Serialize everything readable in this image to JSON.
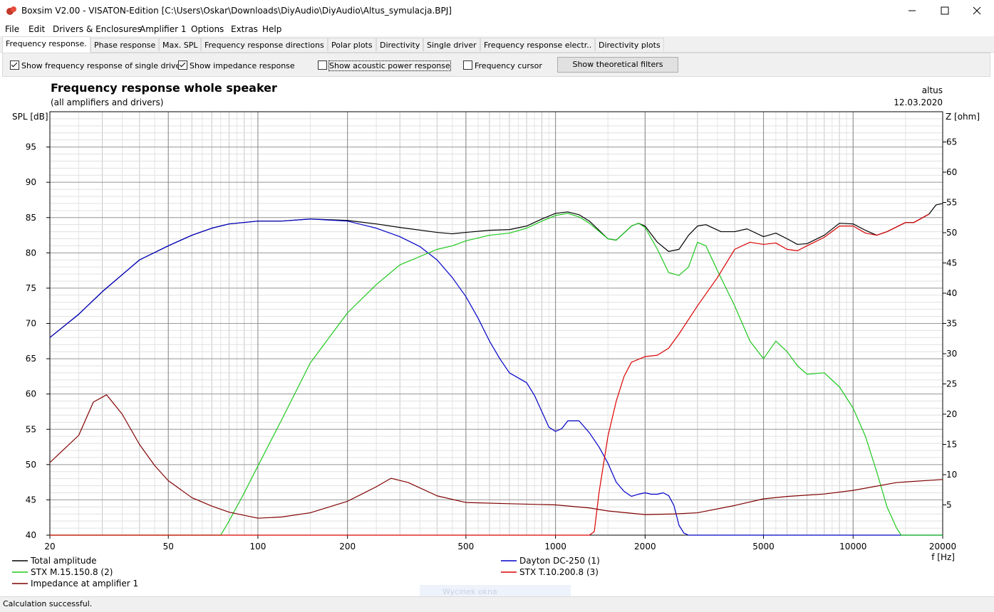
{
  "window": {
    "title": "Boxsim V2.00 - VISATON-Edition [C:\\Users\\Oskar\\Downloads\\DiyAudio\\DiyAudio\\Altus_symulacja.BPJ]",
    "menu": [
      "File",
      "Edit",
      "Drivers & Enclosures",
      "Amplifier 1",
      "Options",
      "Extras",
      "Help"
    ],
    "tabs": [
      "Frequency response.",
      "Phase response",
      "Max. SPL",
      "Frequency response directions",
      "Polar plots",
      "Directivity",
      "Single driver",
      "Frequency response electr..",
      "Directivity plots"
    ],
    "options": [
      {
        "label": "Show frequency response of single driver",
        "checked": true
      },
      {
        "label": "Show impedance response",
        "checked": true
      },
      {
        "label": "Show acoustic power response",
        "checked": false
      },
      {
        "label": "Frequency cursor",
        "checked": false
      }
    ],
    "button": "Show theoretical filters",
    "status": "Calculation successful.",
    "overlay": "Wycinek okna"
  },
  "chart_data": {
    "type": "line",
    "title": "Frequency response whole speaker",
    "subtitle": "(all amplifiers and drivers)",
    "project": "altus",
    "date": "12.03.2020",
    "ylabel": "SPL [dB]",
    "y2label": "Z [ohm]",
    "xlabel": "f [Hz]",
    "xscale": "log",
    "grid": true,
    "xlim": [
      20,
      20000
    ],
    "xticks": [
      20,
      50,
      100,
      200,
      500,
      1000,
      2000,
      5000,
      10000,
      20000
    ],
    "ylim": [
      40,
      100
    ],
    "yticks": [
      40,
      45,
      50,
      55,
      60,
      65,
      70,
      75,
      80,
      85,
      90,
      95
    ],
    "y2lim": [
      0,
      70
    ],
    "y2ticks": [
      5,
      10,
      15,
      20,
      25,
      30,
      35,
      40,
      45,
      50,
      55,
      60,
      65
    ],
    "series": [
      {
        "name": "Total amplitude",
        "color": "#000000",
        "x": [
          20,
          25,
          30,
          40,
          50,
          60,
          70,
          80,
          100,
          120,
          150,
          200,
          250,
          300,
          400,
          450,
          500,
          600,
          700,
          800,
          900,
          1000,
          1100,
          1200,
          1300,
          1500,
          1600,
          1800,
          1900,
          2000,
          2200,
          2400,
          2600,
          2800,
          3000,
          3200,
          3600,
          4000,
          4400,
          5000,
          5500,
          6000,
          6500,
          7000,
          8000,
          9000,
          10000,
          11000,
          12000,
          13000,
          15000,
          16000,
          18000,
          19000,
          20000
        ],
        "values": [
          68,
          71.3,
          74.5,
          79,
          81,
          82.5,
          83.5,
          84.1,
          84.5,
          84.5,
          84.8,
          84.6,
          84.1,
          83.6,
          82.9,
          82.7,
          82.9,
          83.2,
          83.3,
          83.8,
          84.8,
          85.6,
          85.8,
          85.4,
          84.5,
          82,
          81.8,
          83.8,
          84.2,
          83.8,
          81.5,
          80.2,
          80.5,
          82.5,
          83.8,
          84,
          83,
          83,
          83.4,
          82.3,
          82.8,
          82,
          81.2,
          81.3,
          82.5,
          84.2,
          84.1,
          83.2,
          82.5,
          83,
          84.3,
          84.3,
          85.5,
          86.8,
          87
        ]
      },
      {
        "name": "Dayton DC-250 (1)",
        "color": "#0000c8",
        "x": [
          20,
          25,
          30,
          40,
          50,
          60,
          70,
          80,
          100,
          120,
          150,
          200,
          250,
          300,
          350,
          400,
          450,
          500,
          550,
          600,
          650,
          700,
          800,
          850,
          900,
          950,
          1000,
          1050,
          1100,
          1200,
          1300,
          1400,
          1500,
          1600,
          1700,
          1800,
          1900,
          2000,
          2100,
          2200,
          2300,
          2400,
          2500,
          2600,
          2700,
          2800,
          20000
        ],
        "values": [
          68,
          71.3,
          74.5,
          79,
          81,
          82.5,
          83.5,
          84.1,
          84.5,
          84.5,
          84.8,
          84.5,
          83.5,
          82.3,
          80.9,
          79,
          76.5,
          73.8,
          70.7,
          67.5,
          65,
          63,
          61.6,
          59.8,
          57.5,
          55.3,
          54.7,
          55.1,
          56.2,
          56.2,
          54.5,
          52.5,
          50.2,
          47.5,
          46.2,
          45.5,
          45.8,
          46,
          45.8,
          45.8,
          46,
          45.6,
          44.2,
          41.4,
          40.3,
          40,
          40
        ]
      },
      {
        "name": "STX M.15.150.8 (2)",
        "color": "#1ec81e",
        "x": [
          20,
          75,
          80,
          90,
          100,
          120,
          150,
          200,
          250,
          300,
          400,
          450,
          500,
          600,
          700,
          800,
          900,
          1000,
          1100,
          1200,
          1300,
          1500,
          1600,
          1800,
          1900,
          2000,
          2200,
          2400,
          2600,
          2800,
          3000,
          3200,
          3500,
          4000,
          4500,
          5000,
          5500,
          6000,
          6500,
          7000,
          8000,
          9000,
          10000,
          11000,
          12000,
          13000,
          14000,
          14500,
          20000
        ],
        "values": [
          40,
          40,
          42,
          46,
          49.8,
          56.3,
          64.4,
          71.5,
          75.5,
          78.3,
          80.5,
          81,
          81.7,
          82.5,
          82.8,
          83.5,
          84.5,
          85.3,
          85.6,
          85.1,
          84.2,
          82,
          81.8,
          83.8,
          84.2,
          83.6,
          80.5,
          77.2,
          76.8,
          78,
          81.5,
          81,
          77.5,
          72.5,
          67.5,
          65,
          67.5,
          66,
          64,
          62.8,
          63,
          61,
          58,
          54,
          49,
          44,
          41,
          40,
          40
        ]
      },
      {
        "name": "STX T.10.200.8 (3)",
        "color": "#dc0000",
        "x": [
          20,
          1300,
          1350,
          1400,
          1500,
          1600,
          1700,
          1800,
          2000,
          2200,
          2400,
          2600,
          3000,
          3500,
          4000,
          4500,
          5000,
          5500,
          6000,
          6500,
          7000,
          8000,
          9000,
          10000,
          11000,
          12000,
          13000,
          15000,
          16000,
          18000
        ],
        "values": [
          40,
          40,
          40.5,
          46,
          54,
          59,
          62.5,
          64.5,
          65.3,
          65.5,
          66.5,
          68.5,
          72.5,
          76.5,
          80.5,
          81.5,
          81.2,
          81.4,
          80.5,
          80.3,
          81,
          82.2,
          83.8,
          83.8,
          82.8,
          82.5,
          83,
          84.3,
          84.3,
          85.5
        ]
      },
      {
        "name": "Impedance at amplifier 1",
        "color": "#800000",
        "axis": "y2",
        "x": [
          20,
          25,
          28,
          31,
          35,
          40,
          45,
          50,
          60,
          70,
          80,
          100,
          120,
          150,
          200,
          250,
          280,
          320,
          400,
          500,
          700,
          1000,
          1300,
          1500,
          2000,
          2500,
          3000,
          4000,
          5000,
          6000,
          8000,
          10000,
          14000,
          20000
        ],
        "values": [
          12,
          16.5,
          22,
          23.2,
          20,
          15,
          11.5,
          9,
          6.2,
          4.8,
          3.8,
          2.8,
          3,
          3.7,
          5.6,
          8,
          9.4,
          8.7,
          6.5,
          5.4,
          5.2,
          5,
          4.5,
          4,
          3.4,
          3.5,
          3.7,
          4.9,
          6,
          6.4,
          6.8,
          7.4,
          8.7,
          9.2
        ]
      }
    ]
  }
}
